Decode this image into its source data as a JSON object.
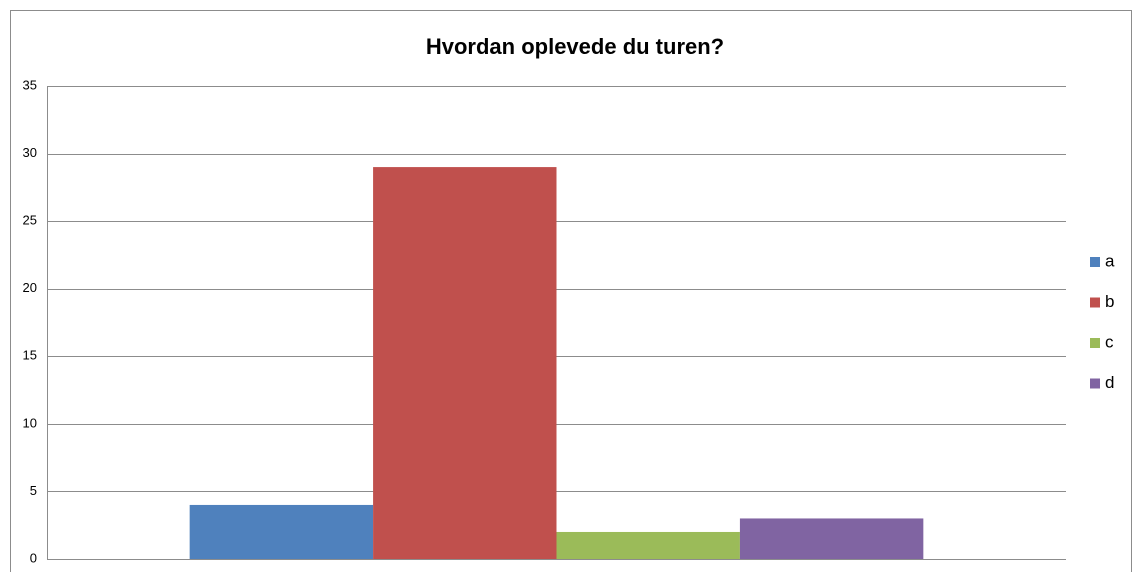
{
  "chart_data": {
    "type": "bar",
    "title": "Hvordan oplevede du turen?",
    "categories": [
      null
    ],
    "series": [
      {
        "name": "a",
        "color": "#4f81bd",
        "values": [
          4
        ]
      },
      {
        "name": "b",
        "color": "#c0504d",
        "values": [
          29
        ]
      },
      {
        "name": "c",
        "color": "#9bbb59",
        "values": [
          2
        ]
      },
      {
        "name": "d",
        "color": "#8064a2",
        "values": [
          3
        ]
      }
    ],
    "ylim": [
      0,
      35
    ],
    "yticks": [
      0,
      5,
      10,
      15,
      20,
      25,
      30,
      35
    ],
    "grid": true,
    "legend": "right"
  }
}
